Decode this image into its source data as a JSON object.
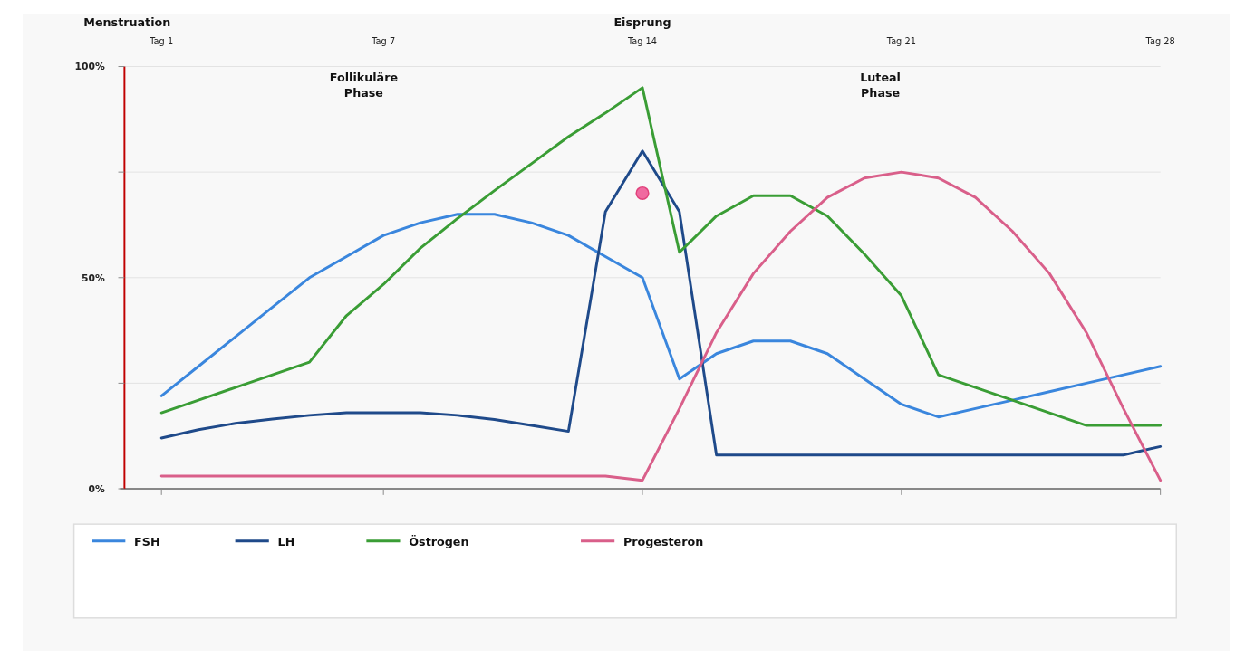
{
  "chart_data": {
    "type": "line",
    "annotations": [
      "Menstruation",
      "Eisprung",
      "Follikuläre\nPhase",
      "Luteal\nPhase"
    ],
    "categories": [
      "Tag 1",
      null,
      null,
      null,
      null,
      null,
      "Tag 7",
      null,
      null,
      null,
      null,
      null,
      null,
      "Tag 14",
      null,
      null,
      null,
      null,
      null,
      null,
      "Tag 21",
      null,
      null,
      null,
      null,
      null,
      null,
      "Tag 28"
    ],
    "ylim": [
      0,
      100
    ],
    "yticks": [
      {
        "value": 0,
        "label": "0%"
      },
      {
        "value": 25,
        "label": null
      },
      {
        "value": 50,
        "label": "50%"
      },
      {
        "value": 75,
        "label": null
      },
      {
        "value": 100,
        "label": "100%"
      }
    ],
    "grid": "y",
    "legend": "bottom",
    "marker": "none",
    "line_style": "solid",
    "series": [
      {
        "name": "FSH",
        "color": "#3a86dd",
        "values": [
          22,
          29,
          36,
          43,
          50,
          55,
          60,
          63,
          65,
          65,
          63,
          60,
          55,
          50,
          26,
          32,
          35,
          35,
          32,
          26,
          20,
          17,
          19,
          21,
          23,
          25,
          27,
          29
        ]
      },
      {
        "name": "LH",
        "color": "#1f4a8a",
        "values": [
          12,
          14,
          15.5,
          16.5,
          17.4,
          18,
          18,
          18,
          17.4,
          16.4,
          15,
          13.6,
          65.6,
          80,
          65.6,
          8,
          8,
          8,
          8,
          8,
          8,
          8,
          8,
          8,
          8,
          8,
          8,
          10
        ]
      },
      {
        "name": "Östrogen",
        "color": "#3a9d35",
        "values": [
          18,
          21,
          24,
          27,
          30,
          41,
          48.4,
          57,
          64,
          70.6,
          77,
          83.4,
          89,
          95,
          56,
          64.6,
          69.4,
          69.4,
          64.6,
          55.6,
          45.7,
          27,
          24,
          21,
          18,
          15,
          15,
          15
        ]
      },
      {
        "name": "Progesteron",
        "color": "#d95f8a",
        "values": [
          3,
          3,
          3,
          3,
          3,
          3,
          3,
          3,
          3,
          3,
          3,
          3,
          3,
          2,
          19,
          37,
          51,
          61,
          69,
          73.6,
          75,
          73.6,
          69,
          61,
          51,
          37,
          19,
          2
        ]
      },
      {
        "type": "scatter",
        "color": "#f06aa0",
        "marker": "circle",
        "values": [
          null,
          null,
          null,
          null,
          null,
          null,
          null,
          null,
          null,
          null,
          null,
          null,
          null,
          70,
          null,
          null,
          null,
          null,
          null,
          null,
          null,
          null,
          null,
          null,
          null,
          null,
          null,
          null
        ]
      }
    ]
  }
}
